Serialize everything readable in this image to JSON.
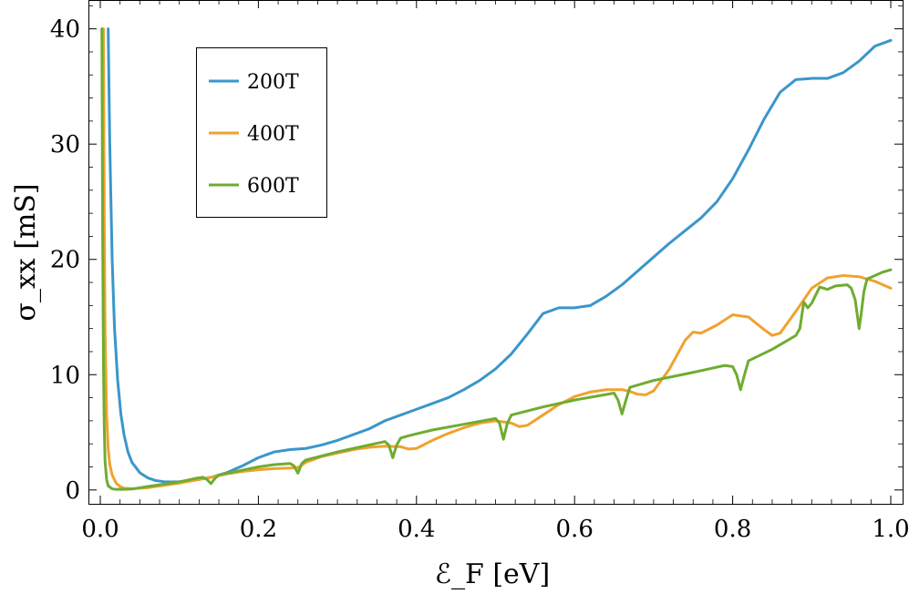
{
  "chart_data": {
    "type": "line",
    "xlabel": "ℰ_F [eV]",
    "ylabel": "σ_xx [mS]",
    "xlim": [
      -0.015,
      1.015
    ],
    "ylim": [
      -1.2,
      42.5
    ],
    "xticks": [
      0.0,
      0.2,
      0.4,
      0.6,
      0.8,
      1.0
    ],
    "xtick_labels": [
      "0.0",
      "0.2",
      "0.4",
      "0.6",
      "0.8",
      "1.0"
    ],
    "yticks": [
      0,
      10,
      20,
      30,
      40
    ],
    "ytick_labels": [
      "0",
      "10",
      "20",
      "30",
      "40"
    ],
    "grid": false,
    "legend_position": "top-left",
    "series": [
      {
        "name": "200T",
        "color": "#3a96cb",
        "x": [
          0.01,
          0.012,
          0.015,
          0.018,
          0.022,
          0.026,
          0.03,
          0.035,
          0.04,
          0.05,
          0.06,
          0.07,
          0.08,
          0.09,
          0.1,
          0.12,
          0.14,
          0.16,
          0.18,
          0.2,
          0.22,
          0.24,
          0.26,
          0.28,
          0.3,
          0.32,
          0.34,
          0.36,
          0.38,
          0.4,
          0.42,
          0.44,
          0.46,
          0.48,
          0.5,
          0.52,
          0.54,
          0.56,
          0.58,
          0.6,
          0.62,
          0.64,
          0.66,
          0.68,
          0.7,
          0.72,
          0.74,
          0.76,
          0.78,
          0.8,
          0.82,
          0.84,
          0.86,
          0.88,
          0.9,
          0.92,
          0.94,
          0.96,
          0.98,
          1.0
        ],
        "y": [
          40,
          30,
          20,
          14,
          9.5,
          6.6,
          4.8,
          3.3,
          2.4,
          1.5,
          1.05,
          0.82,
          0.72,
          0.7,
          0.72,
          0.85,
          1.1,
          1.5,
          2.1,
          2.8,
          3.3,
          3.5,
          3.6,
          3.9,
          4.3,
          4.8,
          5.3,
          6.0,
          6.5,
          7.0,
          7.5,
          8.0,
          8.7,
          9.5,
          10.5,
          11.8,
          13.5,
          15.3,
          15.8,
          15.8,
          16.0,
          16.8,
          17.8,
          19.0,
          20.2,
          21.4,
          22.5,
          23.6,
          25.0,
          27.0,
          29.5,
          32.2,
          34.5,
          35.6,
          35.7,
          35.7,
          36.2,
          37.2,
          38.5,
          39.0
        ]
      },
      {
        "name": "400T",
        "color": "#f0a22e",
        "x": [
          0.004,
          0.005,
          0.006,
          0.008,
          0.01,
          0.012,
          0.015,
          0.02,
          0.025,
          0.03,
          0.04,
          0.06,
          0.08,
          0.1,
          0.12,
          0.14,
          0.16,
          0.18,
          0.2,
          0.22,
          0.24,
          0.25,
          0.26,
          0.28,
          0.3,
          0.32,
          0.34,
          0.36,
          0.38,
          0.39,
          0.4,
          0.42,
          0.44,
          0.46,
          0.48,
          0.5,
          0.52,
          0.53,
          0.54,
          0.56,
          0.58,
          0.6,
          0.62,
          0.64,
          0.66,
          0.67,
          0.68,
          0.69,
          0.7,
          0.72,
          0.74,
          0.75,
          0.76,
          0.78,
          0.8,
          0.82,
          0.84,
          0.85,
          0.86,
          0.88,
          0.9,
          0.92,
          0.94,
          0.96,
          0.98,
          1.0
        ],
        "y": [
          40,
          24,
          14,
          6.5,
          3.6,
          2.2,
          1.3,
          0.6,
          0.3,
          0.15,
          0.1,
          0.2,
          0.4,
          0.6,
          0.85,
          1.1,
          1.4,
          1.6,
          1.75,
          1.85,
          1.9,
          1.95,
          2.4,
          2.9,
          3.2,
          3.5,
          3.7,
          3.8,
          3.75,
          3.55,
          3.6,
          4.3,
          4.9,
          5.4,
          5.8,
          6.0,
          5.8,
          5.5,
          5.6,
          6.5,
          7.4,
          8.1,
          8.5,
          8.7,
          8.7,
          8.55,
          8.3,
          8.25,
          8.6,
          10.5,
          13.0,
          13.7,
          13.6,
          14.3,
          15.2,
          15.0,
          13.9,
          13.4,
          13.6,
          15.5,
          17.5,
          18.4,
          18.6,
          18.5,
          18.1,
          17.5
        ]
      },
      {
        "name": "600T",
        "color": "#6fac31",
        "x": [
          0.002,
          0.003,
          0.004,
          0.005,
          0.006,
          0.008,
          0.01,
          0.015,
          0.02,
          0.03,
          0.04,
          0.06,
          0.08,
          0.1,
          0.12,
          0.13,
          0.135,
          0.14,
          0.145,
          0.15,
          0.2,
          0.22,
          0.24,
          0.245,
          0.25,
          0.255,
          0.26,
          0.3,
          0.34,
          0.36,
          0.365,
          0.37,
          0.375,
          0.38,
          0.39,
          0.42,
          0.46,
          0.5,
          0.505,
          0.51,
          0.515,
          0.52,
          0.56,
          0.6,
          0.65,
          0.655,
          0.66,
          0.665,
          0.67,
          0.7,
          0.75,
          0.79,
          0.8,
          0.805,
          0.81,
          0.815,
          0.82,
          0.85,
          0.88,
          0.885,
          0.89,
          0.895,
          0.9,
          0.91,
          0.92,
          0.93,
          0.945,
          0.95,
          0.955,
          0.96,
          0.963,
          0.966,
          0.97,
          0.98,
          0.99,
          1.0
        ],
        "y": [
          40,
          22,
          11,
          5.5,
          2.5,
          0.9,
          0.35,
          0.1,
          0.05,
          0.05,
          0.08,
          0.3,
          0.5,
          0.7,
          1.0,
          1.1,
          0.9,
          0.55,
          1.0,
          1.3,
          2.0,
          2.2,
          2.3,
          2.1,
          1.45,
          2.3,
          2.6,
          3.3,
          3.9,
          4.2,
          3.9,
          2.8,
          3.9,
          4.5,
          4.7,
          5.2,
          5.7,
          6.2,
          5.8,
          4.4,
          5.8,
          6.5,
          7.2,
          7.8,
          8.4,
          7.8,
          6.6,
          7.8,
          8.9,
          9.5,
          10.2,
          10.8,
          10.7,
          10.0,
          8.7,
          10.0,
          11.2,
          12.2,
          13.4,
          14.0,
          16.3,
          15.8,
          16.2,
          17.6,
          17.4,
          17.7,
          17.8,
          17.5,
          16.5,
          14.0,
          15.5,
          17.2,
          18.3,
          18.6,
          18.9,
          19.1
        ]
      }
    ]
  }
}
